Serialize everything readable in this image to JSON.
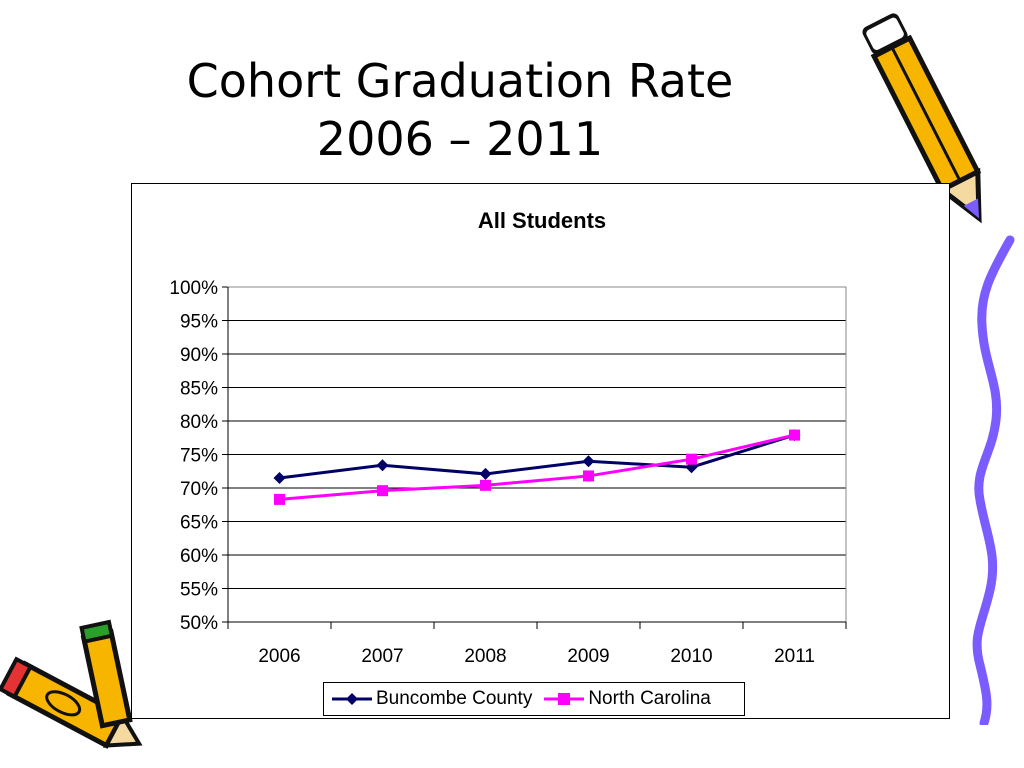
{
  "slide": {
    "title_line1": "Cohort Graduation Rate",
    "title_line2": "2006 – 2011"
  },
  "decorations": {
    "top_right": "pencil-icon",
    "right_edge": "wavy-line-icon",
    "bottom_left": "pencils-icon"
  },
  "chart_data": {
    "type": "line",
    "title": "All Students",
    "categories": [
      "2006",
      "2007",
      "2008",
      "2009",
      "2010",
      "2011"
    ],
    "y_ticks": [
      "50%",
      "55%",
      "60%",
      "65%",
      "70%",
      "75%",
      "80%",
      "85%",
      "90%",
      "95%",
      "100%"
    ],
    "ylim": [
      50,
      100
    ],
    "grid": true,
    "legend_position": "bottom",
    "series": [
      {
        "name": "Buncombe County",
        "values": [
          71.5,
          73.4,
          72.1,
          74.0,
          73.1,
          77.9
        ],
        "color": "#000066",
        "marker": "diamond"
      },
      {
        "name": "North Carolina",
        "values": [
          68.3,
          69.6,
          70.4,
          71.8,
          74.3,
          77.9
        ],
        "color": "#ff00ff",
        "marker": "square"
      }
    ]
  }
}
